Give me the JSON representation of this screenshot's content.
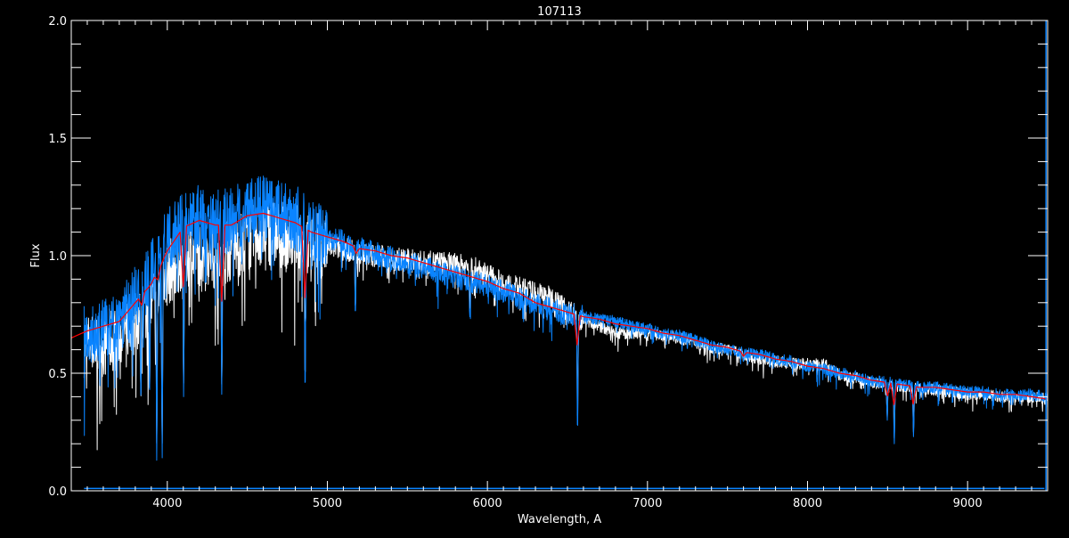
{
  "chart_data": {
    "type": "line",
    "title": "107113",
    "xlabel": "Wavelength, A",
    "ylabel": "Flux",
    "xlim": [
      3400,
      9500
    ],
    "ylim": [
      0.0,
      2.0
    ],
    "grid": false,
    "background": "#000000",
    "x_ticks": [
      4000,
      5000,
      6000,
      7000,
      8000,
      9000
    ],
    "x_tick_labels": [
      "4000",
      "5000",
      "6000",
      "7000",
      "8000",
      "9000"
    ],
    "y_ticks": [
      0.0,
      0.5,
      1.0,
      1.5,
      2.0
    ],
    "y_tick_labels": [
      "0.0",
      "0.5",
      "1.0",
      "1.5",
      "2.0"
    ],
    "x_minor_step": 100,
    "y_minor_step": 0.1,
    "wavelength_grid": [
      3400,
      3500,
      3600,
      3700,
      3800,
      3900,
      4000,
      4100,
      4200,
      4300,
      4400,
      4500,
      4600,
      4700,
      4800,
      4900,
      5000,
      5100,
      5200,
      5300,
      5400,
      5500,
      5600,
      5700,
      5800,
      5900,
      6000,
      6100,
      6200,
      6300,
      6400,
      6500,
      6600,
      6700,
      6800,
      6900,
      7000,
      7100,
      7200,
      7300,
      7400,
      7500,
      7600,
      7700,
      7800,
      7900,
      8000,
      8100,
      8200,
      8300,
      8400,
      8500,
      8600,
      8700,
      8800,
      8900,
      9000,
      9100,
      9200,
      9300,
      9400,
      9500
    ],
    "series": [
      {
        "color": "#ffffff",
        "start": 3480,
        "values": [
          0.62,
          0.62,
          0.62,
          0.66,
          0.72,
          0.8,
          0.92,
          1.0,
          1.02,
          1.0,
          1.02,
          1.07,
          1.1,
          1.09,
          1.08,
          1.05,
          1.04,
          1.03,
          1.01,
          1.0,
          0.99,
          0.98,
          0.97,
          0.97,
          0.96,
          0.95,
          0.92,
          0.88,
          0.86,
          0.84,
          0.82,
          0.77,
          0.73,
          0.7,
          0.67,
          0.67,
          0.67,
          0.66,
          0.65,
          0.63,
          0.61,
          0.6,
          0.58,
          0.56,
          0.55,
          0.54,
          0.54,
          0.54,
          0.49,
          0.48,
          0.46,
          0.45,
          0.44,
          0.43,
          0.43,
          0.42,
          0.41,
          0.41,
          0.4,
          0.4,
          0.4,
          0.39
        ]
      },
      {
        "color": "#0a84ff",
        "start": 3480,
        "values": [
          0.65,
          0.66,
          0.68,
          0.73,
          0.82,
          0.92,
          1.06,
          1.14,
          1.17,
          1.14,
          1.15,
          1.19,
          1.2,
          1.18,
          1.16,
          1.11,
          1.08,
          1.06,
          1.03,
          1.01,
          0.99,
          0.97,
          0.95,
          0.93,
          0.91,
          0.89,
          0.87,
          0.85,
          0.82,
          0.79,
          0.77,
          0.75,
          0.74,
          0.73,
          0.72,
          0.7,
          0.69,
          0.67,
          0.66,
          0.64,
          0.62,
          0.6,
          0.59,
          0.58,
          0.56,
          0.55,
          0.53,
          0.52,
          0.5,
          0.49,
          0.47,
          0.46,
          0.45,
          0.44,
          0.44,
          0.43,
          0.42,
          0.42,
          0.41,
          0.41,
          0.41,
          0.4
        ]
      },
      {
        "color": "#ff0000",
        "start": 3400,
        "values": [
          0.65,
          0.68,
          0.7,
          0.72,
          0.8,
          0.88,
          1.02,
          1.12,
          1.15,
          1.13,
          1.13,
          1.17,
          1.18,
          1.16,
          1.14,
          1.1,
          1.08,
          1.06,
          1.03,
          1.02,
          1.0,
          0.99,
          0.97,
          0.95,
          0.93,
          0.91,
          0.89,
          0.86,
          0.84,
          0.8,
          0.78,
          0.76,
          0.74,
          0.73,
          0.71,
          0.7,
          0.69,
          0.67,
          0.66,
          0.64,
          0.62,
          0.61,
          0.59,
          0.58,
          0.56,
          0.55,
          0.53,
          0.52,
          0.5,
          0.49,
          0.47,
          0.46,
          0.45,
          0.44,
          0.44,
          0.43,
          0.42,
          0.42,
          0.41,
          0.41,
          0.4,
          0.39
        ]
      }
    ],
    "absorption_lines": [
      {
        "wavelength": 3835,
        "min_flux": 0.38
      },
      {
        "wavelength": 3889,
        "min_flux": 0.4
      },
      {
        "wavelength": 3934,
        "min_flux": 0.13
      },
      {
        "wavelength": 3968,
        "min_flux": 0.14
      },
      {
        "wavelength": 4102,
        "min_flux": 0.4
      },
      {
        "wavelength": 4340,
        "min_flux": 0.41
      },
      {
        "wavelength": 4861,
        "min_flux": 0.42
      },
      {
        "wavelength": 5175,
        "min_flux": 0.75
      },
      {
        "wavelength": 5890,
        "min_flux": 0.74
      },
      {
        "wavelength": 6563,
        "min_flux": 0.25
      },
      {
        "wavelength": 7600,
        "min_flux": 0.55
      },
      {
        "wavelength": 8498,
        "min_flux": 0.3
      },
      {
        "wavelength": 8542,
        "min_flux": 0.2
      },
      {
        "wavelength": 8662,
        "min_flux": 0.23
      }
    ],
    "error_series": {
      "color": "#0a84ff",
      "level": 0.01
    },
    "edge_spike": {
      "color": "#0a84ff",
      "wavelength": 9490,
      "max_flux": 2.0
    }
  }
}
